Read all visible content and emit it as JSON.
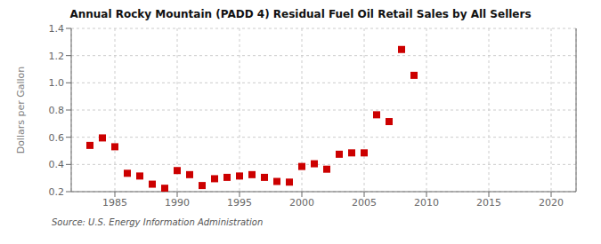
{
  "chart_data": {
    "type": "scatter",
    "title": "Annual Rocky Mountain (PADD 4) Residual Fuel Oil Retail Sales by All Sellers",
    "ylabel": "Dollars per Gallon",
    "annotations": [
      "Source: U.S. Energy Information Administration"
    ],
    "x": [
      1983,
      1984,
      1985,
      1986,
      1987,
      1988,
      1989,
      1990,
      1991,
      1992,
      1993,
      1994,
      1995,
      1996,
      1997,
      1998,
      1999,
      2000,
      2001,
      2002,
      2003,
      2004,
      2005,
      2006,
      2007,
      2008,
      2009
    ],
    "values": [
      0.54,
      0.595,
      0.53,
      0.335,
      0.315,
      0.255,
      0.225,
      0.355,
      0.325,
      0.245,
      0.295,
      0.305,
      0.315,
      0.325,
      0.305,
      0.275,
      0.27,
      0.385,
      0.405,
      0.365,
      0.475,
      0.485,
      0.485,
      0.765,
      0.715,
      1.245,
      1.055
    ],
    "color": "#cc0000",
    "marker": "square",
    "xlim": [
      1981.5,
      2022
    ],
    "ylim": [
      0.2,
      1.4
    ],
    "xticks": [
      1985,
      1990,
      1995,
      2000,
      2005,
      2010,
      2015,
      2020
    ],
    "yticks": [
      0.2,
      0.4,
      0.6,
      0.8,
      {
        "value": 1,
        "label": "1.0"
      },
      1.2,
      1.4
    ],
    "grid": true
  }
}
